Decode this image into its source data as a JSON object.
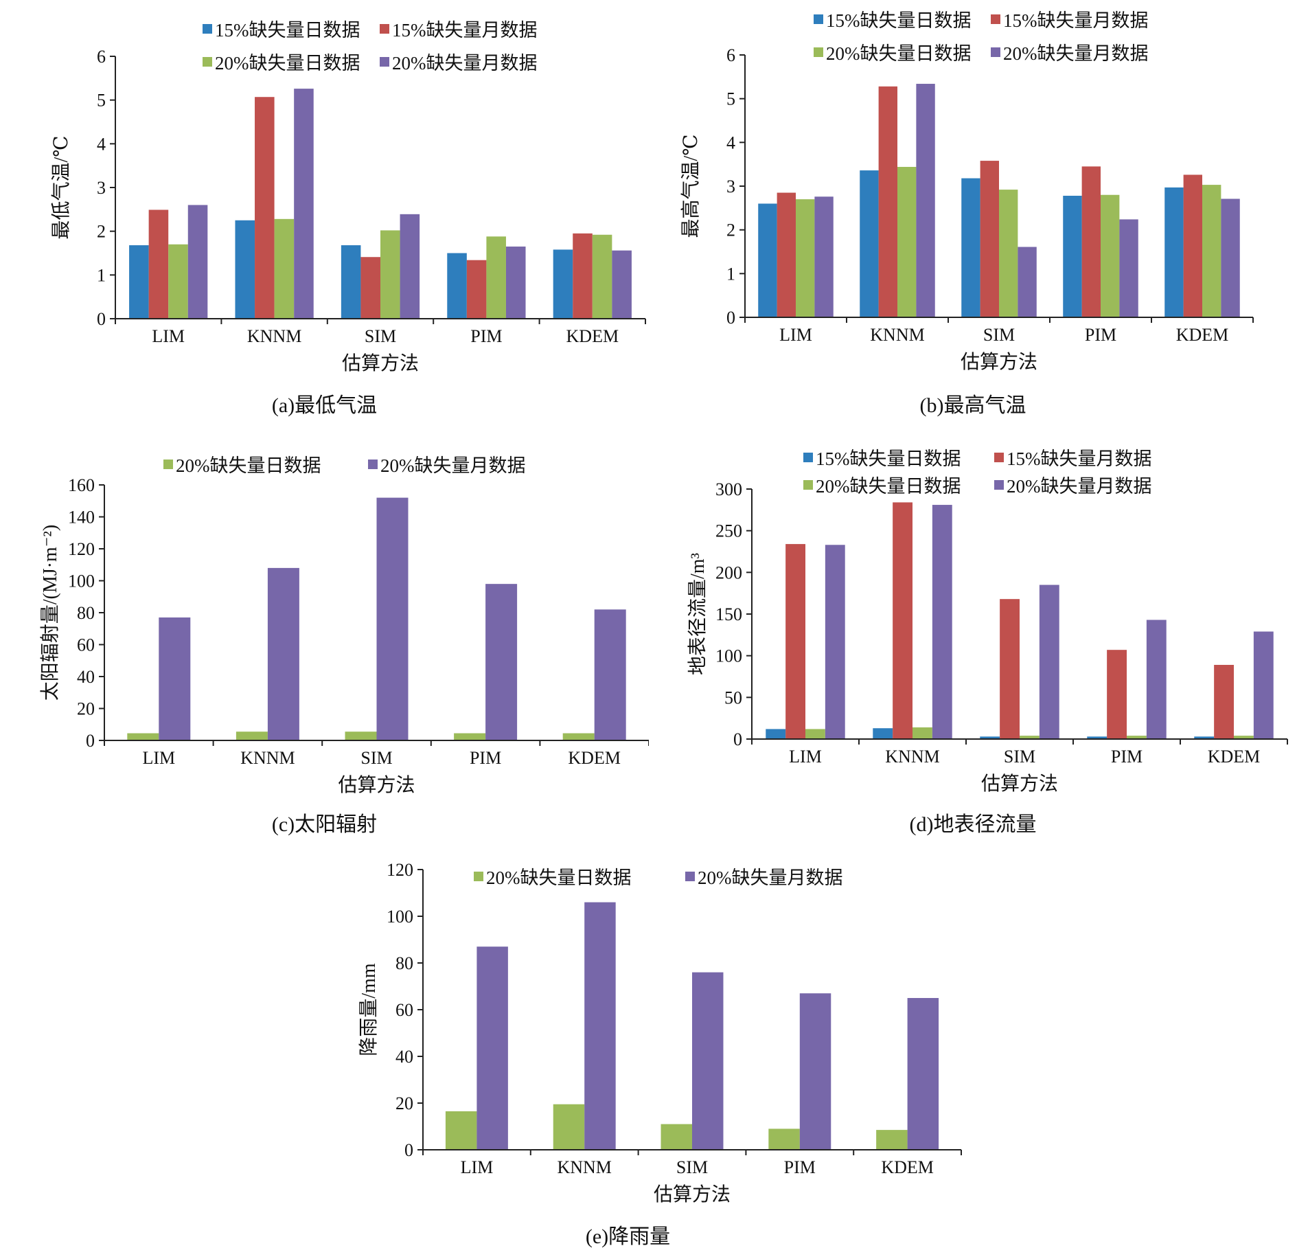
{
  "colors": {
    "blue": "#2e7ebd",
    "red": "#c0504d",
    "green": "#9bbb59",
    "purple": "#7767a9"
  },
  "chart_data": [
    {
      "type": "bar",
      "caption": "(a)最低气温",
      "categories": [
        "LIM",
        "KNNM",
        "SIM",
        "PIM",
        "KDEM"
      ],
      "xlabel": "估算方法",
      "ylabel": "最低气温/℃",
      "ylim": [
        0,
        6
      ],
      "yticks": [
        0,
        1,
        2,
        3,
        4,
        5,
        6
      ],
      "legend_position": "top",
      "series": [
        {
          "name": "15%缺失量日数据",
          "color": "#2e7ebd",
          "values": [
            1.68,
            2.25,
            1.68,
            1.5,
            1.58
          ]
        },
        {
          "name": "15%缺失量月数据",
          "color": "#c0504d",
          "values": [
            2.49,
            5.07,
            1.41,
            1.34,
            1.95
          ]
        },
        {
          "name": "20%缺失量日数据",
          "color": "#9bbb59",
          "values": [
            1.7,
            2.28,
            2.02,
            1.88,
            1.92
          ]
        },
        {
          "name": "20%缺失量月数据",
          "color": "#7767a9",
          "values": [
            2.6,
            5.26,
            2.39,
            1.65,
            1.56
          ]
        }
      ]
    },
    {
      "type": "bar",
      "caption": "(b)最高气温",
      "categories": [
        "LIM",
        "KNNM",
        "SIM",
        "PIM",
        "KDEM"
      ],
      "xlabel": "估算方法",
      "ylabel": "最高气温/℃",
      "ylim": [
        0,
        6
      ],
      "yticks": [
        0,
        1,
        2,
        3,
        4,
        5,
        6
      ],
      "legend_position": "top",
      "series": [
        {
          "name": "15%缺失量日数据",
          "color": "#2e7ebd",
          "values": [
            2.6,
            3.36,
            3.18,
            2.78,
            2.97
          ]
        },
        {
          "name": "15%缺失量月数据",
          "color": "#c0504d",
          "values": [
            2.85,
            5.28,
            3.58,
            3.45,
            3.26
          ]
        },
        {
          "name": "20%缺失量日数据",
          "color": "#9bbb59",
          "values": [
            2.7,
            3.44,
            2.92,
            2.8,
            3.03
          ]
        },
        {
          "name": "20%缺失量月数据",
          "color": "#7767a9",
          "values": [
            2.76,
            5.34,
            1.61,
            2.24,
            2.71
          ]
        }
      ]
    },
    {
      "type": "bar",
      "caption": "(c)太阳辐射",
      "categories": [
        "LIM",
        "KNNM",
        "SIM",
        "PIM",
        "KDEM"
      ],
      "xlabel": "估算方法",
      "ylabel": "太阳辐射量/(MJ·m⁻²)",
      "ylim": [
        0,
        160
      ],
      "yticks": [
        0,
        20,
        40,
        60,
        80,
        100,
        120,
        140,
        160
      ],
      "legend_position": "top",
      "series": [
        {
          "name": "20%缺失量日数据",
          "color": "#9bbb59",
          "values": [
            4.5,
            5.5,
            5.5,
            4.5,
            4.5
          ]
        },
        {
          "name": "20%缺失量月数据",
          "color": "#7767a9",
          "values": [
            77,
            108,
            152,
            98,
            82
          ]
        }
      ]
    },
    {
      "type": "bar",
      "caption": "(d)地表径流量",
      "categories": [
        "LIM",
        "KNNM",
        "SIM",
        "PIM",
        "KDEM"
      ],
      "xlabel": "估算方法",
      "ylabel": "地表径流量/m³",
      "ylim": [
        0,
        300
      ],
      "yticks": [
        0,
        50,
        100,
        150,
        200,
        250,
        300
      ],
      "legend_position": "top",
      "series": [
        {
          "name": "15%缺失量日数据",
          "color": "#2e7ebd",
          "values": [
            12,
            13,
            3,
            3,
            3
          ]
        },
        {
          "name": "15%缺失量月数据",
          "color": "#c0504d",
          "values": [
            234,
            284,
            168,
            107,
            89
          ]
        },
        {
          "name": "20%缺失量日数据",
          "color": "#9bbb59",
          "values": [
            12,
            14,
            4,
            4,
            4
          ]
        },
        {
          "name": "20%缺失量月数据",
          "color": "#7767a9",
          "values": [
            233,
            281,
            185,
            143,
            129
          ]
        }
      ]
    },
    {
      "type": "bar",
      "caption": "(e)降雨量",
      "categories": [
        "LIM",
        "KNNM",
        "SIM",
        "PIM",
        "KDEM"
      ],
      "xlabel": "估算方法",
      "ylabel": "降雨量/mm",
      "ylim": [
        0,
        120
      ],
      "yticks": [
        0,
        20,
        40,
        60,
        80,
        100,
        120
      ],
      "legend_position": "top",
      "series": [
        {
          "name": "20%缺失量日数据",
          "color": "#9bbb59",
          "values": [
            16.5,
            19.5,
            11,
            9,
            8.5
          ]
        },
        {
          "name": "20%缺失量月数据",
          "color": "#7767a9",
          "values": [
            87,
            106,
            76,
            67,
            65
          ]
        }
      ]
    }
  ]
}
